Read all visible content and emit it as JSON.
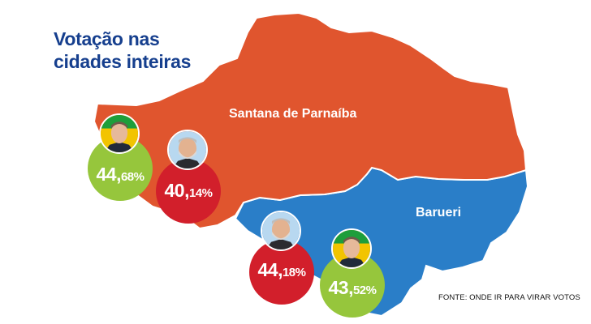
{
  "title": {
    "line1": "Votação nas",
    "line2": "cidades inteiras"
  },
  "source": "FONTE: ONDE IR PARA VIRAR VOTOS",
  "colors": {
    "title": "#163f8e",
    "santana_region": "#e0552e",
    "barueri_region": "#2a7ec8",
    "bolsonaro_disc": "#96c63c",
    "lula_disc": "#d21f2b"
  },
  "cities": [
    {
      "name": "Santana de Parnaíba",
      "results": [
        {
          "candidate": "Bolsonaro",
          "whole": "44,",
          "fraction": "68%",
          "color": "#96c63c"
        },
        {
          "candidate": "Lula",
          "whole": "40,",
          "fraction": "14%",
          "color": "#d21f2b"
        }
      ]
    },
    {
      "name": "Barueri",
      "results": [
        {
          "candidate": "Lula",
          "whole": "44,",
          "fraction": "18%",
          "color": "#d21f2b"
        },
        {
          "candidate": "Bolsonaro",
          "whole": "43,",
          "fraction": "52%",
          "color": "#96c63c"
        }
      ]
    }
  ]
}
